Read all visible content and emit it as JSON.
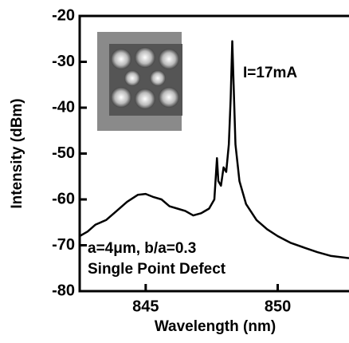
{
  "chart_data": {
    "type": "line",
    "x_label": "Wavelength (nm)",
    "y_label": "Intensity (dBm)",
    "annotations": [
      "I=17mA",
      "a=4μm, b/a=0.3",
      "Single Point Defect"
    ],
    "xlim": [
      842.5,
      852.7
    ],
    "ylim": [
      -80,
      -20
    ],
    "xticks": [
      845,
      850
    ],
    "yticks": [
      -80,
      -70,
      -60,
      -50,
      -40,
      -30,
      -20
    ],
    "series": [
      {
        "color": "#000000",
        "x": [
          842.5,
          842.8,
          843.1,
          843.5,
          843.9,
          844.3,
          844.7,
          845.0,
          845.3,
          845.6,
          845.9,
          846.2,
          846.5,
          846.8,
          847.1,
          847.4,
          847.6,
          847.7,
          847.75,
          847.85,
          847.95,
          848.05,
          848.15,
          848.22,
          848.28,
          848.33,
          848.4,
          848.55,
          848.8,
          849.2,
          849.6,
          850.0,
          850.5,
          851.0,
          851.5,
          852.0,
          852.7
        ],
        "values": [
          -68,
          -67,
          -65.5,
          -64.5,
          -62.5,
          -60.5,
          -59,
          -58.8,
          -59.5,
          -60,
          -61.5,
          -62,
          -62.5,
          -63.5,
          -63,
          -62,
          -60,
          -51,
          -56,
          -57,
          -53,
          -54,
          -48,
          -38,
          -25.5,
          -35,
          -48,
          -56,
          -61,
          -64.5,
          -66.5,
          -68,
          -69.5,
          -70.5,
          -71.5,
          -72.3,
          -72.8
        ]
      }
    ]
  }
}
